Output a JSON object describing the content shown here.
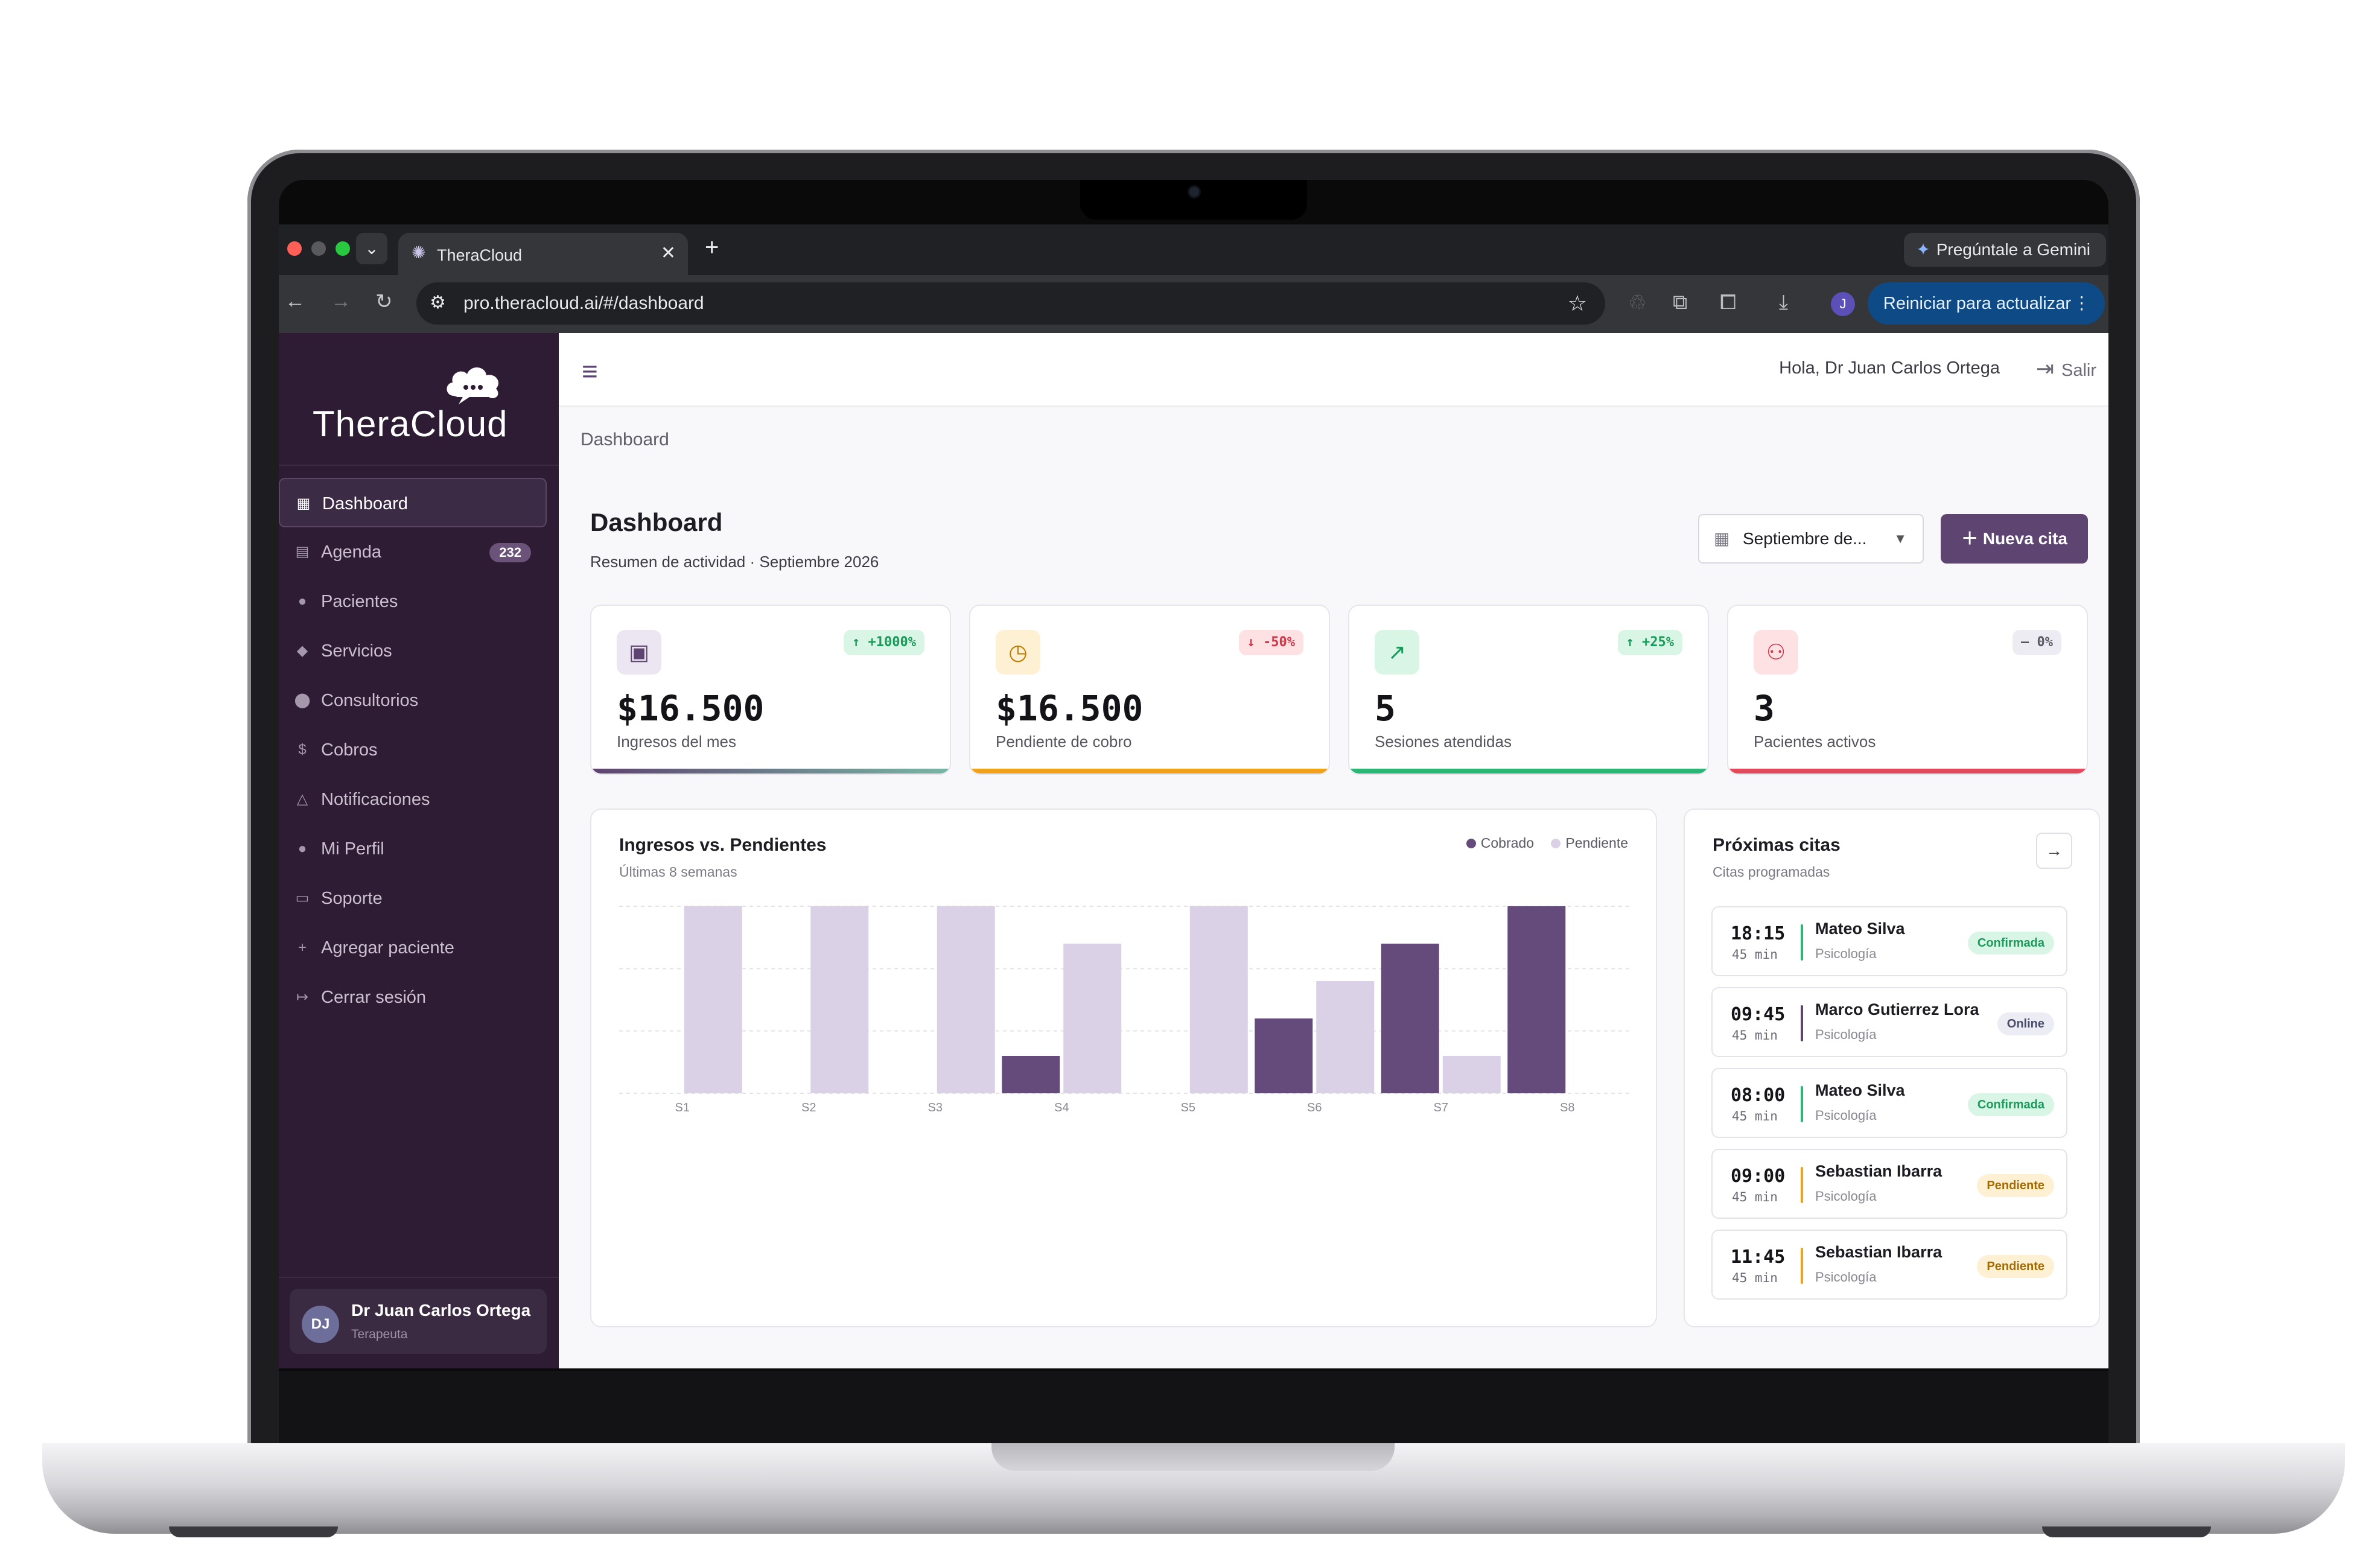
{
  "browser": {
    "tab_title": "TheraCloud",
    "new_tab": "+",
    "gemini_label": "Pregúntale a Gemini",
    "url": "pro.theracloud.ai/#/dashboard",
    "profile_initial": "J",
    "update_label": "Reiniciar para actualizar"
  },
  "sidebar": {
    "logo_text": "TheraCloud",
    "items": [
      {
        "label": "Dashboard",
        "icon": "grid-icon",
        "active": true
      },
      {
        "label": "Agenda",
        "icon": "calendar-icon",
        "badge": "232"
      },
      {
        "label": "Pacientes",
        "icon": "person-icon"
      },
      {
        "label": "Servicios",
        "icon": "tag-icon"
      },
      {
        "label": "Consultorios",
        "icon": "pin-icon"
      },
      {
        "label": "Cobros",
        "icon": "dollar-icon"
      },
      {
        "label": "Notificaciones",
        "icon": "bell-icon"
      },
      {
        "label": "Mi Perfil",
        "icon": "user-icon"
      },
      {
        "label": "Soporte",
        "icon": "chat-icon"
      },
      {
        "label": "Agregar paciente",
        "icon": "plus-icon"
      },
      {
        "label": "Cerrar sesión",
        "icon": "logout-icon"
      }
    ],
    "user": {
      "initials": "DJ",
      "name": "Dr Juan Carlos Ortega",
      "role": "Terapeuta"
    }
  },
  "header": {
    "greeting": "Hola, Dr Juan Carlos Ortega",
    "logout_label": "Salir"
  },
  "breadcrumb": "Dashboard",
  "page": {
    "title": "Dashboard",
    "subtitle": "Resumen de actividad · Septiembre 2026",
    "month_select": "Septiembre de...",
    "new_appointment": "Nueva cita"
  },
  "kpis": [
    {
      "value": "$16.500",
      "label": "Ingresos del mes",
      "badge": "↑ +1000%",
      "icon": "money-icon"
    },
    {
      "value": "$16.500",
      "label": "Pendiente de cobro",
      "badge": "↓ -50%",
      "icon": "clock-icon"
    },
    {
      "value": "5",
      "label": "Sesiones atendidas",
      "badge": "↑ +25%",
      "icon": "trend-icon"
    },
    {
      "value": "3",
      "label": "Pacientes activos",
      "badge": "– 0%",
      "icon": "people-icon"
    }
  ],
  "colors": {
    "sidebar_bg": "#2d1c33",
    "accent": "#5e4470",
    "cobrado": "#654a7c",
    "pendiente": "#dbd1e6",
    "green": "#2bb673",
    "orange": "#f0a21e",
    "red": "#e04a5a"
  },
  "chart": {
    "title": "Ingresos vs. Pendientes",
    "subtitle": "Últimas 8 semanas"
  },
  "chart_data": {
    "type": "bar",
    "title": "Ingresos vs. Pendientes",
    "subtitle": "Últimas 8 semanas",
    "categories": [
      "S1",
      "S2",
      "S3",
      "S4",
      "S5",
      "S6",
      "S7",
      "S8"
    ],
    "series": [
      {
        "name": "Cobrado",
        "values": [
          0,
          0,
          0,
          0.2,
          0,
          0.4,
          0.8,
          1.0
        ]
      },
      {
        "name": "Pendiente",
        "values": [
          1.0,
          1.0,
          1.0,
          0.8,
          1.0,
          0.6,
          0.2,
          0
        ]
      }
    ],
    "ylim": [
      0,
      1
    ],
    "grid": true,
    "legend": "top-right"
  },
  "appointments": {
    "title": "Próximas citas",
    "subtitle": "Citas programadas",
    "arrow": "→",
    "items": [
      {
        "time": "18:15",
        "duration": "45 min",
        "name": "Mateo Silva",
        "specialty": "Psicología",
        "status": "Confirmada",
        "kind": "confirmed"
      },
      {
        "time": "09:45",
        "duration": "45 min",
        "name": "Marco Gutierrez Lora",
        "specialty": "Psicología",
        "status": "Online",
        "kind": "online"
      },
      {
        "time": "08:00",
        "duration": "45 min",
        "name": "Mateo Silva",
        "specialty": "Psicología",
        "status": "Confirmada",
        "kind": "confirmed"
      },
      {
        "time": "09:00",
        "duration": "45 min",
        "name": "Sebastian Ibarra",
        "specialty": "Psicología",
        "status": "Pendiente",
        "kind": "pending"
      },
      {
        "time": "11:45",
        "duration": "45 min",
        "name": "Sebastian Ibarra",
        "specialty": "Psicología",
        "status": "Pendiente",
        "kind": "pending"
      }
    ]
  }
}
